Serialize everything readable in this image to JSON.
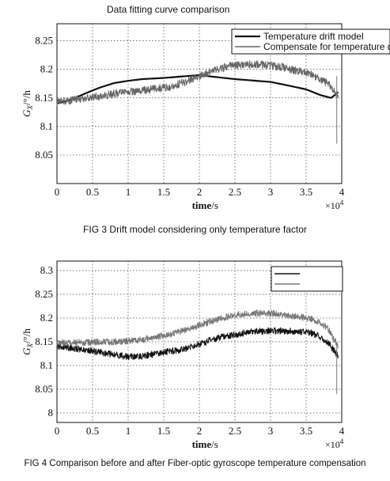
{
  "figures": [
    {
      "caption": "FIG 3 Drift model considering only temperature factor"
    },
    {
      "caption": "FIG 4 Comparison before and after Fiber-optic gyroscope temperature compensation"
    }
  ],
  "chart_data": [
    {
      "type": "line",
      "title": "Data fitting curve comparison",
      "xlabel": "time/s",
      "ylabel": "G_X/°/h",
      "x_exponent": "×10^4",
      "xlim": [
        0,
        4
      ],
      "ylim": [
        8.0,
        8.28
      ],
      "xticks": [
        "0",
        "0.5",
        "1",
        "1.5",
        "2",
        "2.5",
        "3",
        "3.5",
        "4"
      ],
      "yticks": [
        "8.05",
        "8.1",
        "8.15",
        "8.2",
        "8.25"
      ],
      "grid": true,
      "legend_position": "top-right",
      "series": [
        {
          "name": "Temperature drift model",
          "color": "#111111",
          "style": "thick",
          "x": [
            0.0,
            0.2,
            0.4,
            0.6,
            0.8,
            1.0,
            1.2,
            1.5,
            1.8,
            2.0,
            2.2,
            2.5,
            2.8,
            3.0,
            3.2,
            3.5,
            3.7,
            3.85,
            3.95
          ],
          "values": [
            8.14,
            8.147,
            8.158,
            8.168,
            8.176,
            8.18,
            8.183,
            8.185,
            8.188,
            8.19,
            8.187,
            8.183,
            8.18,
            8.178,
            8.173,
            8.165,
            8.155,
            8.15,
            8.16
          ]
        },
        {
          "name": "Compensate for temperature drift",
          "color": "#666666",
          "style": "noisy",
          "x": [
            0.0,
            0.2,
            0.4,
            0.6,
            0.8,
            1.0,
            1.2,
            1.4,
            1.6,
            1.8,
            2.0,
            2.2,
            2.4,
            2.6,
            2.8,
            3.0,
            3.2,
            3.4,
            3.6,
            3.8,
            3.95
          ],
          "values": [
            8.143,
            8.146,
            8.15,
            8.153,
            8.157,
            8.16,
            8.163,
            8.166,
            8.17,
            8.178,
            8.188,
            8.198,
            8.205,
            8.208,
            8.209,
            8.207,
            8.203,
            8.197,
            8.19,
            8.175,
            8.155
          ]
        }
      ]
    },
    {
      "type": "line",
      "title": "",
      "xlabel": "time/s",
      "ylabel": "G_X/°/h",
      "x_exponent": "×10^4",
      "xlim": [
        0,
        4
      ],
      "ylim": [
        7.98,
        8.32
      ],
      "xticks": [
        "0",
        "0.5",
        "1",
        "1.5",
        "2",
        "2.5",
        "3",
        "3.5",
        "4"
      ],
      "yticks": [
        "8",
        "8.05",
        "8.1",
        "8.15",
        "8.2",
        "8.25",
        "8.3"
      ],
      "grid": true,
      "legend_position": "top-right",
      "series": [
        {
          "color": "#111111",
          "style": "noisy",
          "x": [
            0.0,
            0.2,
            0.4,
            0.6,
            0.8,
            1.0,
            1.2,
            1.4,
            1.6,
            1.8,
            2.0,
            2.2,
            2.4,
            2.6,
            2.8,
            3.0,
            3.2,
            3.4,
            3.6,
            3.8,
            3.95
          ],
          "values": [
            8.14,
            8.137,
            8.133,
            8.128,
            8.123,
            8.118,
            8.12,
            8.125,
            8.13,
            8.135,
            8.145,
            8.155,
            8.163,
            8.168,
            8.172,
            8.173,
            8.173,
            8.172,
            8.168,
            8.15,
            8.12
          ]
        },
        {
          "color": "#777777",
          "style": "noisy",
          "x": [
            0.0,
            0.2,
            0.4,
            0.6,
            0.8,
            1.0,
            1.2,
            1.4,
            1.6,
            1.8,
            2.0,
            2.2,
            2.4,
            2.6,
            2.8,
            3.0,
            3.2,
            3.4,
            3.6,
            3.8,
            3.95
          ],
          "values": [
            8.148,
            8.148,
            8.149,
            8.149,
            8.15,
            8.152,
            8.155,
            8.16,
            8.166,
            8.175,
            8.185,
            8.195,
            8.203,
            8.208,
            8.21,
            8.21,
            8.207,
            8.203,
            8.197,
            8.18,
            8.14
          ]
        }
      ]
    }
  ]
}
